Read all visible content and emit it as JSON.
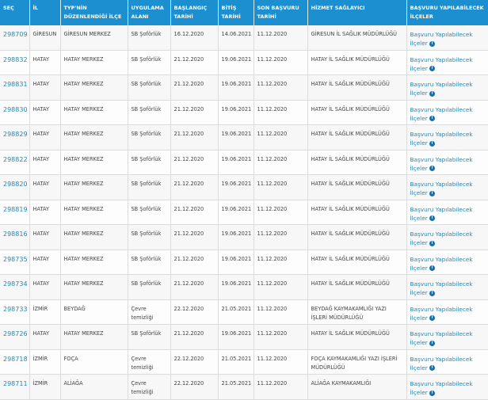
{
  "headers": [
    "SEÇ",
    "İL",
    "TYP'NİN DÜZENLENDİĞİ İLÇE",
    "UYGULAMA ALANI",
    "BAŞLANGIÇ TARİHİ",
    "BİTİŞ TARİHİ",
    "SON BAŞVURU TARİHİ",
    "HİZMET SAĞLAYICI",
    "BAŞVURU YAPILABİLECEK İLÇELER"
  ],
  "link_label": "Başvuru Yapılabilecek İlçeler",
  "info_icon": "i",
  "rows": [
    [
      "298709",
      "GİRESUN",
      "GİRESUN MERKEZ",
      "SB Şoförlük",
      "16.12.2020",
      "14.06.2021",
      "11.12.2020",
      "GİRESUN İL SAĞLIK MÜDÜRLÜĞÜ"
    ],
    [
      "298832",
      "HATAY",
      "HATAY MERKEZ",
      "SB Şoförlük",
      "21.12.2020",
      "19.06.2021",
      "11.12.2020",
      "HATAY İL SAĞLIK MÜDÜRLÜĞÜ"
    ],
    [
      "298831",
      "HATAY",
      "HATAY MERKEZ",
      "SB Şoförlük",
      "21.12.2020",
      "19.06.2021",
      "11.12.2020",
      "HATAY İL SAĞLIK MÜDÜRLÜĞÜ"
    ],
    [
      "298830",
      "HATAY",
      "HATAY MERKEZ",
      "SB Şoförlük",
      "21.12.2020",
      "19.06.2021",
      "11.12.2020",
      "HATAY İL SAĞLIK MÜDÜRLÜĞÜ"
    ],
    [
      "298829",
      "HATAY",
      "HATAY MERKEZ",
      "SB Şoförlük",
      "21.12.2020",
      "19.06.2021",
      "11.12.2020",
      "HATAY İL SAĞLIK MÜDÜRLÜĞÜ"
    ],
    [
      "298822",
      "HATAY",
      "HATAY MERKEZ",
      "SB Şoförlük",
      "21.12.2020",
      "19.06.2021",
      "11.12.2020",
      "HATAY İL SAĞLIK MÜDÜRLÜĞÜ"
    ],
    [
      "298820",
      "HATAY",
      "HATAY MERKEZ",
      "SB Şoförlük",
      "21.12.2020",
      "19.06.2021",
      "11.12.2020",
      "HATAY İL SAĞLIK MÜDÜRLÜĞÜ"
    ],
    [
      "298819",
      "HATAY",
      "HATAY MERKEZ",
      "SB Şoförlük",
      "21.12.2020",
      "19.06.2021",
      "11.12.2020",
      "HATAY İL SAĞLIK MÜDÜRLÜĞÜ"
    ],
    [
      "298816",
      "HATAY",
      "HATAY MERKEZ",
      "SB Şoförlük",
      "21.12.2020",
      "19.06.2021",
      "11.12.2020",
      "HATAY İL SAĞLIK MÜDÜRLÜĞÜ"
    ],
    [
      "298735",
      "HATAY",
      "HATAY MERKEZ",
      "SB Şoförlük",
      "21.12.2020",
      "19.06.2021",
      "11.12.2020",
      "HATAY İL SAĞLIK MÜDÜRLÜĞÜ"
    ],
    [
      "298734",
      "HATAY",
      "HATAY MERKEZ",
      "SB Şoförlük",
      "21.12.2020",
      "19.06.2021",
      "11.12.2020",
      "HATAY İL SAĞLIK MÜDÜRLÜĞÜ"
    ],
    [
      "298733",
      "İZMİR",
      "BEYDAĞ",
      "Çevre temizliği",
      "22.12.2020",
      "21.05.2021",
      "11.12.2020",
      "BEYDAĞ KAYMAKAMLIĞI YAZI İŞLERİ MÜDÜRLÜĞÜ"
    ],
    [
      "298726",
      "HATAY",
      "HATAY MERKEZ",
      "SB Şoförlük",
      "21.12.2020",
      "19.06.2021",
      "11.12.2020",
      "HATAY İL SAĞLIK MÜDÜRLÜĞÜ"
    ],
    [
      "298718",
      "İZMİR",
      "FOÇA",
      "Çevre temizliği",
      "22.12.2020",
      "21.05.2021",
      "11.12.2020",
      "FOÇA KAYMAKAMLIĞI YAZI İŞLERİ MÜDÜRLÜĞÜ"
    ],
    [
      "298711",
      "İZMİR",
      "ALİAĞA",
      "Çevre temizliği",
      "22.12.2020",
      "21.05.2021",
      "11.12.2020",
      "ALİAĞA KAYMAKAMLIĞI"
    ]
  ]
}
